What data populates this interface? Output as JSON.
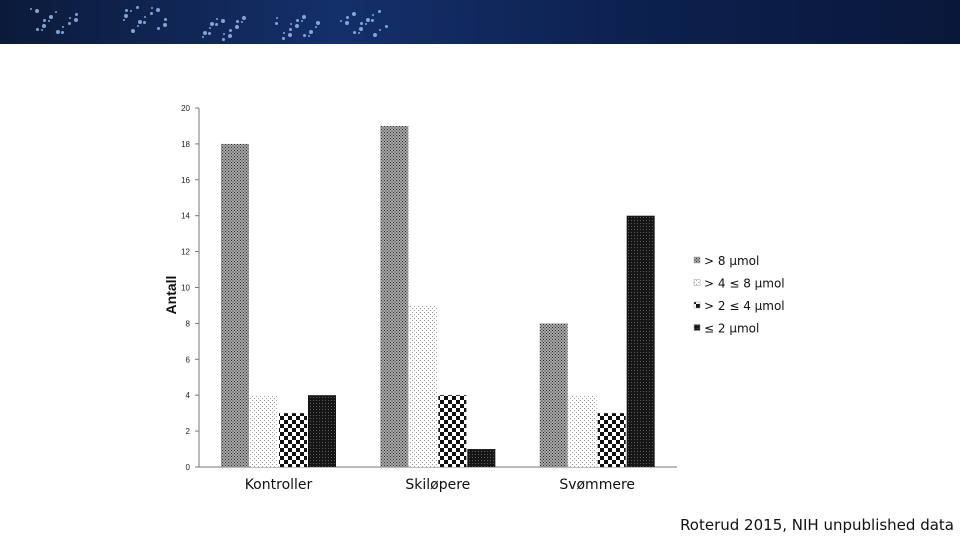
{
  "chart_data": {
    "type": "bar",
    "ylabel": "Antall",
    "ylim": [
      0,
      20
    ],
    "yticks": [
      0,
      2,
      4,
      6,
      8,
      10,
      12,
      14,
      16,
      18,
      20
    ],
    "categories": [
      "Kontroller",
      "Skiløpere",
      "Svømmere"
    ],
    "series": [
      {
        "name": "> 8 µmol",
        "values": [
          18,
          19,
          8
        ],
        "pattern": "dense-dots",
        "color": "#8c8c8c"
      },
      {
        "name": "> 4 ≤ 8 µmol",
        "values": [
          4,
          9,
          4
        ],
        "pattern": "sparse-dots",
        "color": "#d9d9d9"
      },
      {
        "name": "> 2 ≤ 4 µmol",
        "values": [
          3,
          4,
          3
        ],
        "pattern": "checker",
        "color": "#111111"
      },
      {
        "name": "≤ 2 µmol",
        "values": [
          4,
          1,
          14
        ],
        "pattern": "dark-dots",
        "color": "#1a1a1a"
      }
    ],
    "grid": false,
    "legend_position": "right"
  },
  "source_note": "Roterud 2015, NIH unpublished data"
}
